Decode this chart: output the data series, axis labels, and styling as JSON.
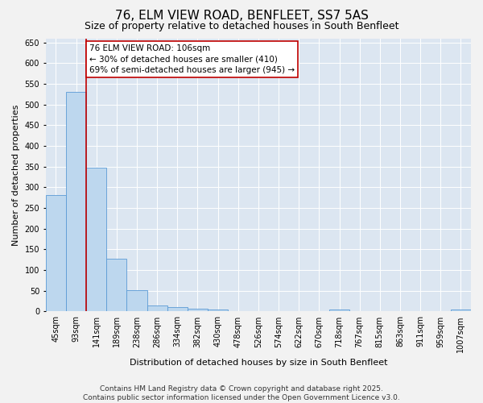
{
  "title": "76, ELM VIEW ROAD, BENFLEET, SS7 5AS",
  "subtitle": "Size of property relative to detached houses in South Benfleet",
  "xlabel": "Distribution of detached houses by size in South Benfleet",
  "ylabel": "Number of detached properties",
  "bins": [
    "45sqm",
    "93sqm",
    "141sqm",
    "189sqm",
    "238sqm",
    "286sqm",
    "334sqm",
    "382sqm",
    "430sqm",
    "478sqm",
    "526sqm",
    "574sqm",
    "622sqm",
    "670sqm",
    "718sqm",
    "767sqm",
    "815sqm",
    "863sqm",
    "911sqm",
    "959sqm",
    "1007sqm"
  ],
  "values": [
    281,
    530,
    348,
    127,
    52,
    15,
    10,
    7,
    4,
    0,
    0,
    0,
    0,
    0,
    5,
    0,
    0,
    0,
    0,
    0,
    4
  ],
  "bar_color": "#bdd7ee",
  "bar_edge_color": "#5b9bd5",
  "highlight_line_color": "#c00000",
  "annotation_line1": "76 ELM VIEW ROAD: 106sqm",
  "annotation_line2": "← 30% of detached houses are smaller (410)",
  "annotation_line3": "69% of semi-detached houses are larger (945) →",
  "annotation_box_color": "#ffffff",
  "annotation_box_edge": "#c00000",
  "ylim": [
    0,
    660
  ],
  "yticks": [
    0,
    50,
    100,
    150,
    200,
    250,
    300,
    350,
    400,
    450,
    500,
    550,
    600,
    650
  ],
  "footer_line1": "Contains HM Land Registry data © Crown copyright and database right 2025.",
  "footer_line2": "Contains public sector information licensed under the Open Government Licence v3.0.",
  "fig_bg_color": "#f2f2f2",
  "plot_bg_color": "#dce6f1",
  "title_fontsize": 11,
  "subtitle_fontsize": 9,
  "xlabel_fontsize": 8,
  "ylabel_fontsize": 8,
  "tick_fontsize": 7,
  "annotation_fontsize": 7.5,
  "footer_fontsize": 6.5
}
